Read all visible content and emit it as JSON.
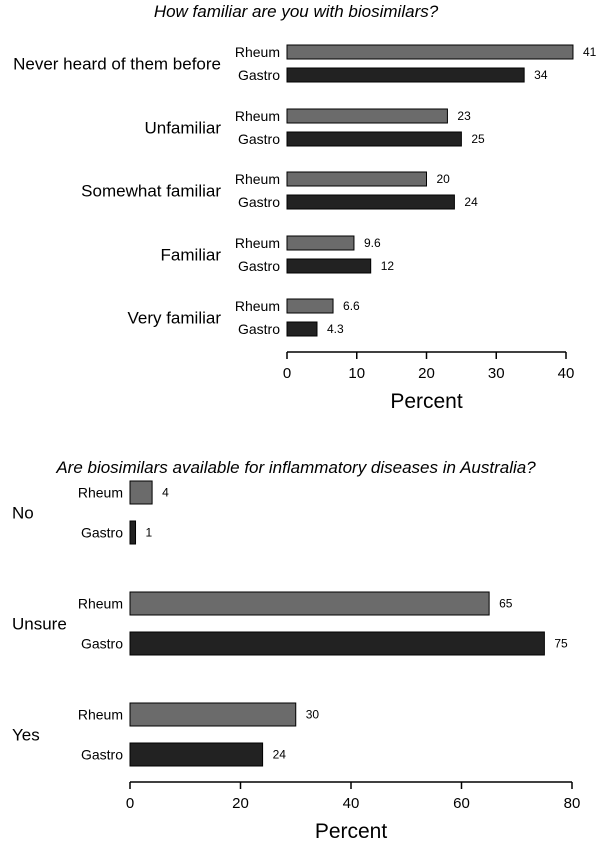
{
  "chart_data": [
    {
      "type": "bar",
      "orientation": "horizontal",
      "title": "How familiar are you with biosimilars?",
      "xlabel": "Percent",
      "ylabel": "",
      "xlim": [
        0,
        40
      ],
      "xticks": [
        0,
        10,
        20,
        30,
        40
      ],
      "grid": false,
      "categories": [
        "Never heard of them before",
        "Unfamiliar",
        "Somewhat familiar",
        "Familiar",
        "Very familiar"
      ],
      "series": [
        {
          "name": "Rheum",
          "color": "#6b6b6b",
          "values": [
            41,
            23,
            20,
            9.6,
            6.6
          ],
          "labels": [
            "41",
            "23",
            "20",
            "9.6",
            "6.6"
          ]
        },
        {
          "name": "Gastro",
          "color": "#222222",
          "values": [
            34,
            25,
            24,
            12,
            4.3
          ],
          "labels": [
            "34",
            "25",
            "24",
            "12",
            "4.3"
          ]
        }
      ]
    },
    {
      "type": "bar",
      "orientation": "horizontal",
      "title": "Are biosimilars available for inflammatory diseases in Australia?",
      "xlabel": "Percent",
      "ylabel": "",
      "xlim": [
        0,
        80
      ],
      "xticks": [
        0,
        20,
        40,
        60,
        80
      ],
      "grid": false,
      "categories": [
        "No",
        "Unsure",
        "Yes"
      ],
      "series": [
        {
          "name": "Rheum",
          "color": "#6b6b6b",
          "values": [
            4,
            65,
            30
          ],
          "labels": [
            "4",
            "65",
            "30"
          ]
        },
        {
          "name": "Gastro",
          "color": "#222222",
          "values": [
            1,
            75,
            24
          ],
          "labels": [
            "1",
            "75",
            "24"
          ]
        }
      ]
    }
  ]
}
